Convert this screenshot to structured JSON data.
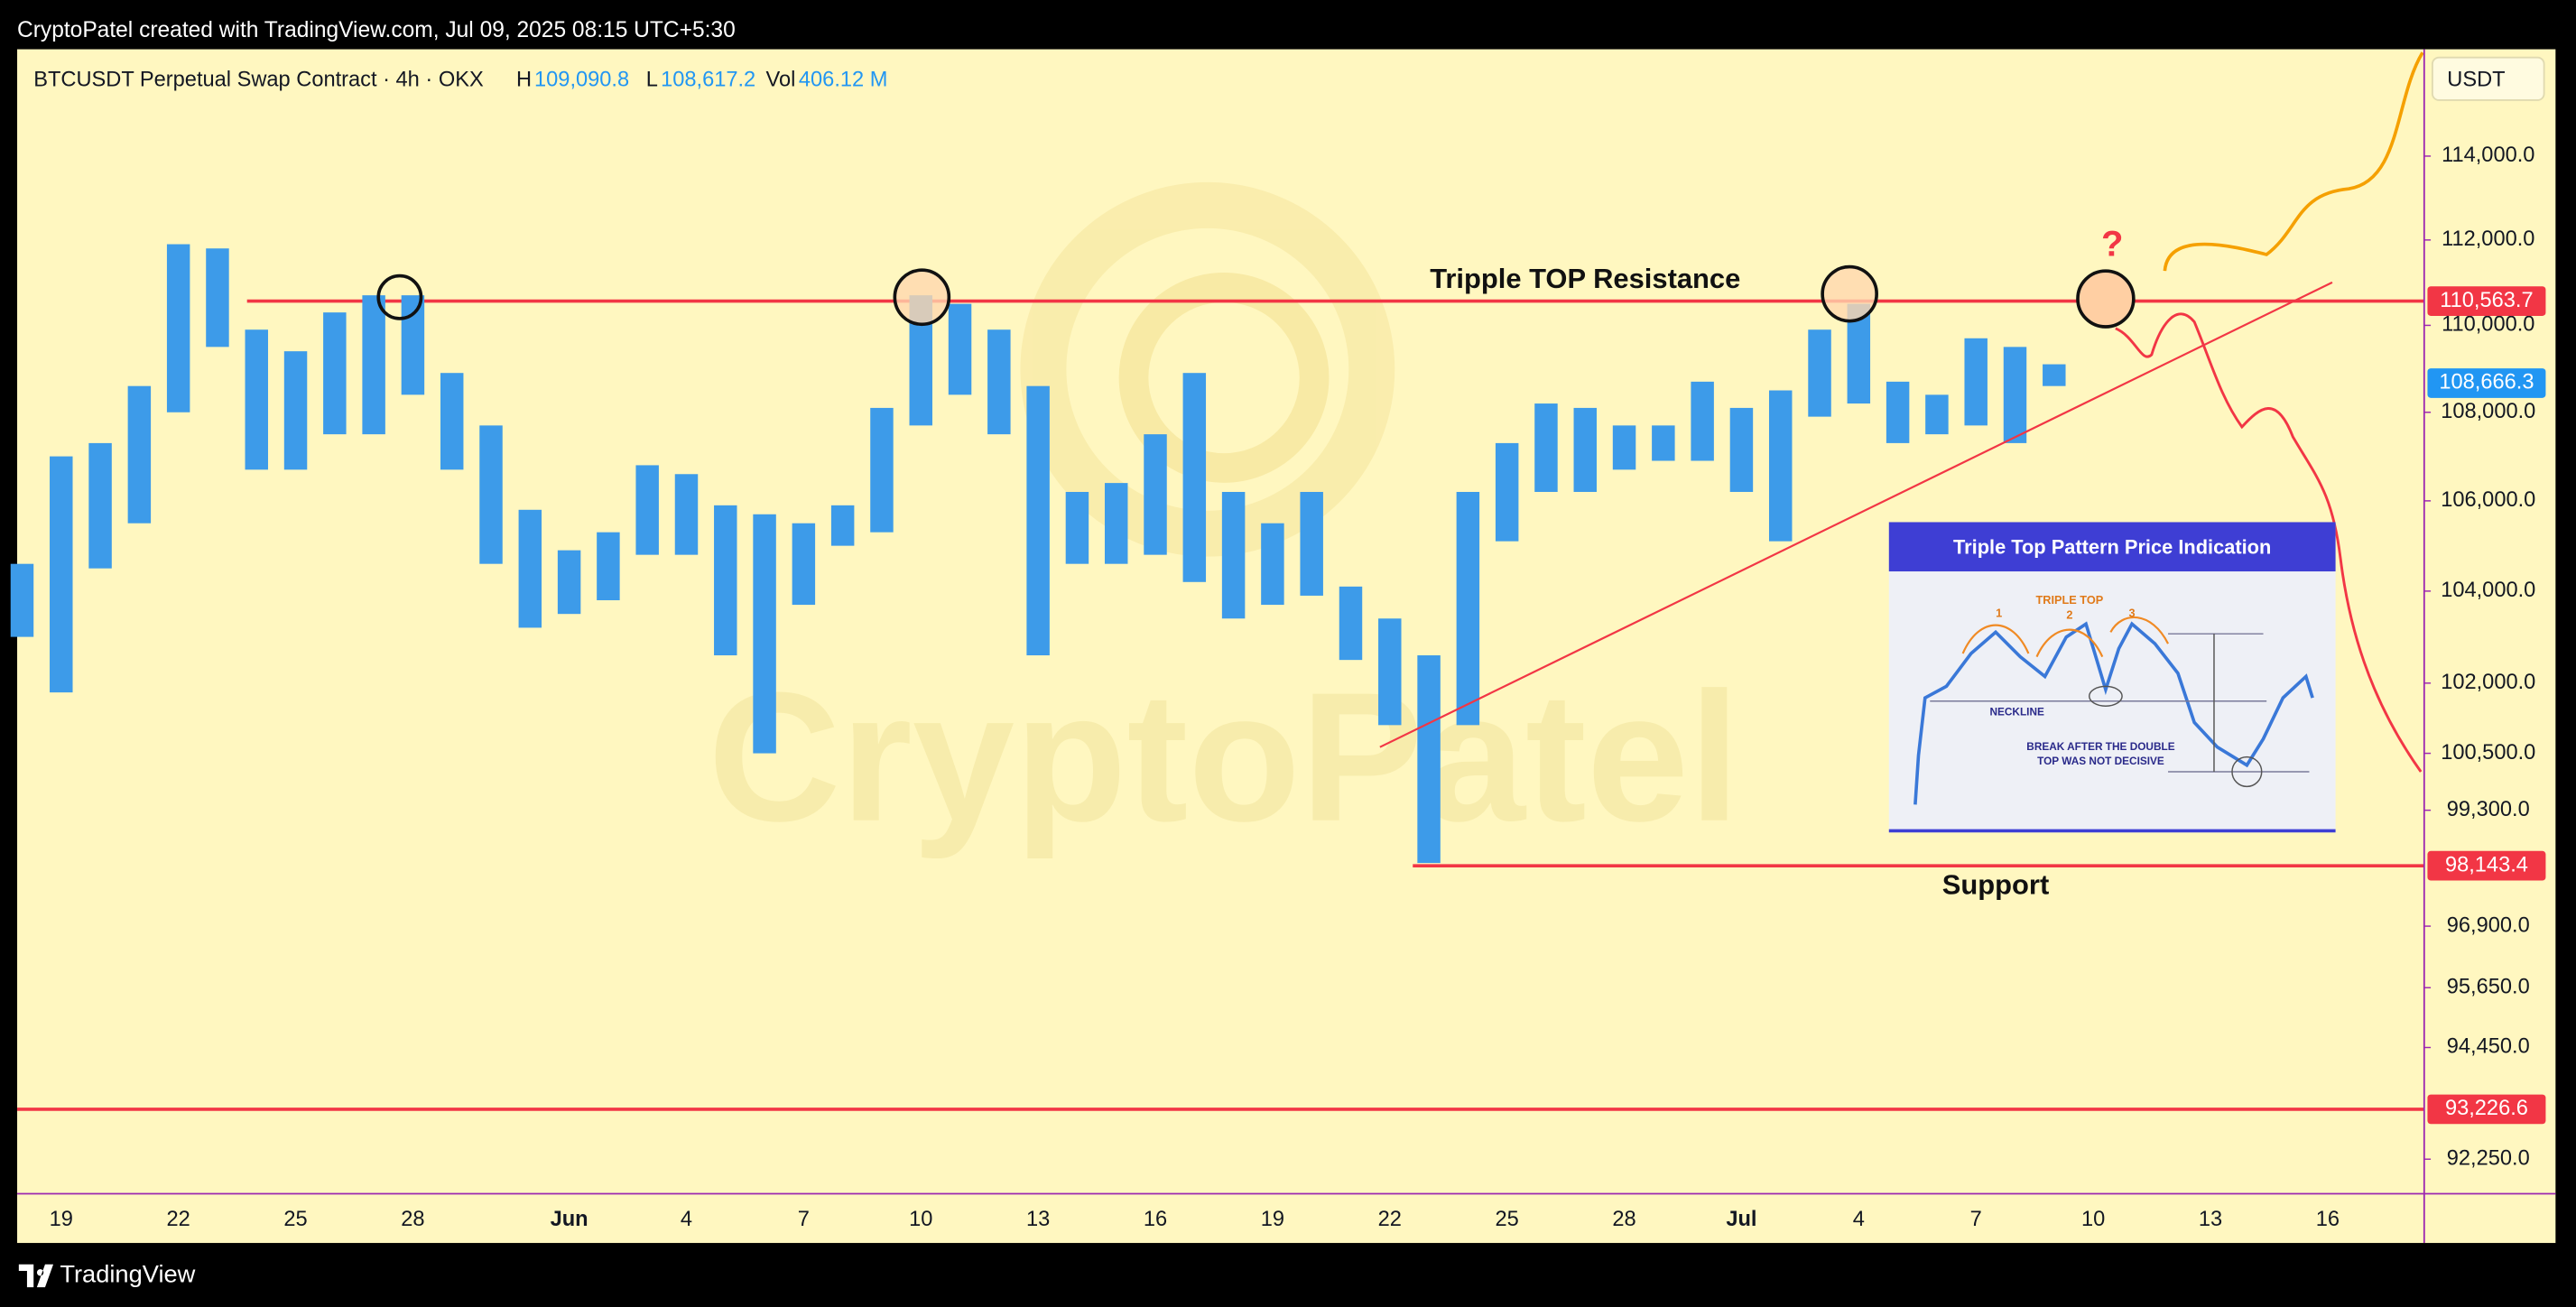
{
  "chart_data": {
    "type": "ohlc",
    "credit": "CryptoPatel created with TradingView.com, Jul 09, 2025 08:15 UTC+5:30",
    "title": "BTCUSDT Perpetual Swap Contract · 4h · OKX",
    "ohlc_legend": {
      "high_label": "H",
      "high": "109,090.8",
      "low_label": "L",
      "low": "108,617.2",
      "vol_label": "Vol",
      "vol": "406.12 M"
    },
    "currency": "USDT",
    "watermark": "CryptoPatel",
    "brand": "TradingView",
    "color": "#3d9be9",
    "log": true,
    "categories": [
      null,
      "19",
      null,
      null,
      "22",
      null,
      null,
      "25",
      null,
      null,
      "28",
      null,
      null,
      null,
      "Jun",
      null,
      null,
      "4",
      null,
      null,
      "7",
      null,
      null,
      "10",
      null,
      null,
      "13",
      null,
      null,
      "16",
      null,
      null,
      "19",
      null,
      null,
      "22",
      null,
      null,
      "25",
      null,
      null,
      "28",
      null,
      null,
      "Jul",
      null,
      null,
      "4",
      null,
      null,
      "7",
      null,
      null,
      "10",
      null,
      null,
      "13",
      null,
      null,
      "16",
      null,
      null
    ],
    "high": [
      104600,
      107000,
      107300,
      108600,
      111900,
      111800,
      109900,
      109400,
      110300,
      110700,
      110700,
      108900,
      107700,
      105800,
      104900,
      105300,
      106800,
      106600,
      105900,
      105700,
      105500,
      105900,
      108100,
      110700,
      110500,
      109900,
      108600,
      106200,
      106400,
      107500,
      108900,
      106200,
      105500,
      106200,
      104100,
      103400,
      102600,
      106200,
      107300,
      108200,
      108100,
      107700,
      107700,
      108700,
      108100,
      108500,
      109900,
      110500,
      108700,
      108400,
      109700,
      109500,
      109100,
      null,
      null,
      null,
      null,
      null,
      null,
      null,
      null,
      null
    ],
    "low": [
      103000,
      101800,
      104500,
      105500,
      108000,
      109500,
      106700,
      106700,
      107500,
      107500,
      108400,
      106700,
      104600,
      103200,
      103500,
      103800,
      104800,
      104800,
      102600,
      100500,
      103700,
      105000,
      105300,
      107700,
      108400,
      107500,
      102600,
      104600,
      104600,
      104800,
      104200,
      103400,
      103700,
      103900,
      102500,
      101100,
      98200,
      101100,
      105100,
      106200,
      106200,
      106700,
      106900,
      106900,
      106200,
      105100,
      107900,
      108200,
      107300,
      107500,
      107700,
      107300,
      108600,
      null,
      null,
      null,
      null,
      null,
      null,
      null,
      null,
      null
    ],
    "ylim": [
      91580,
      116600
    ],
    "yticks": [
      {
        "value": 114000,
        "label": "114,000.0"
      },
      {
        "value": 112000,
        "label": "112,000.0"
      },
      {
        "value": 110000,
        "label": "110,000.0"
      },
      {
        "value": 108000,
        "label": "108,000.0"
      },
      {
        "value": 106000,
        "label": "106,000.0"
      },
      {
        "value": 104000,
        "label": "104,000.0"
      },
      {
        "value": 102000,
        "label": "102,000.0"
      },
      {
        "value": 100500,
        "label": "100,500.0"
      },
      {
        "value": 99300,
        "label": "99,300.0"
      },
      {
        "value": 96900,
        "label": "96,900.0"
      },
      {
        "value": 95650,
        "label": "95,650.0"
      },
      {
        "value": 94450,
        "label": "94,450.0"
      },
      {
        "value": 92250,
        "label": "92,250.0"
      }
    ],
    "levels": [
      {
        "value": 110563.7,
        "label": "110,563.7",
        "color": "#f23645"
      },
      {
        "value": 98143.4,
        "label": "98,143.4",
        "color": "#f23645"
      },
      {
        "value": 93226.6,
        "label": "93,226.6",
        "color": "#f23645"
      }
    ],
    "last_price": {
      "value": 108666.3,
      "label": "108,666.3",
      "color": "#2196f3"
    },
    "annotations": [
      "Tripple TOP Resistance",
      "Support",
      "?"
    ],
    "inset": {
      "title": "Triple Top Pattern Price Indication",
      "labels": [
        "TRIPLE TOP",
        "1",
        "2",
        "3",
        "NECKLINE",
        "BREAK AFTER THE DOUBLE",
        "TOP WAS NOT DECISIVE"
      ]
    }
  }
}
